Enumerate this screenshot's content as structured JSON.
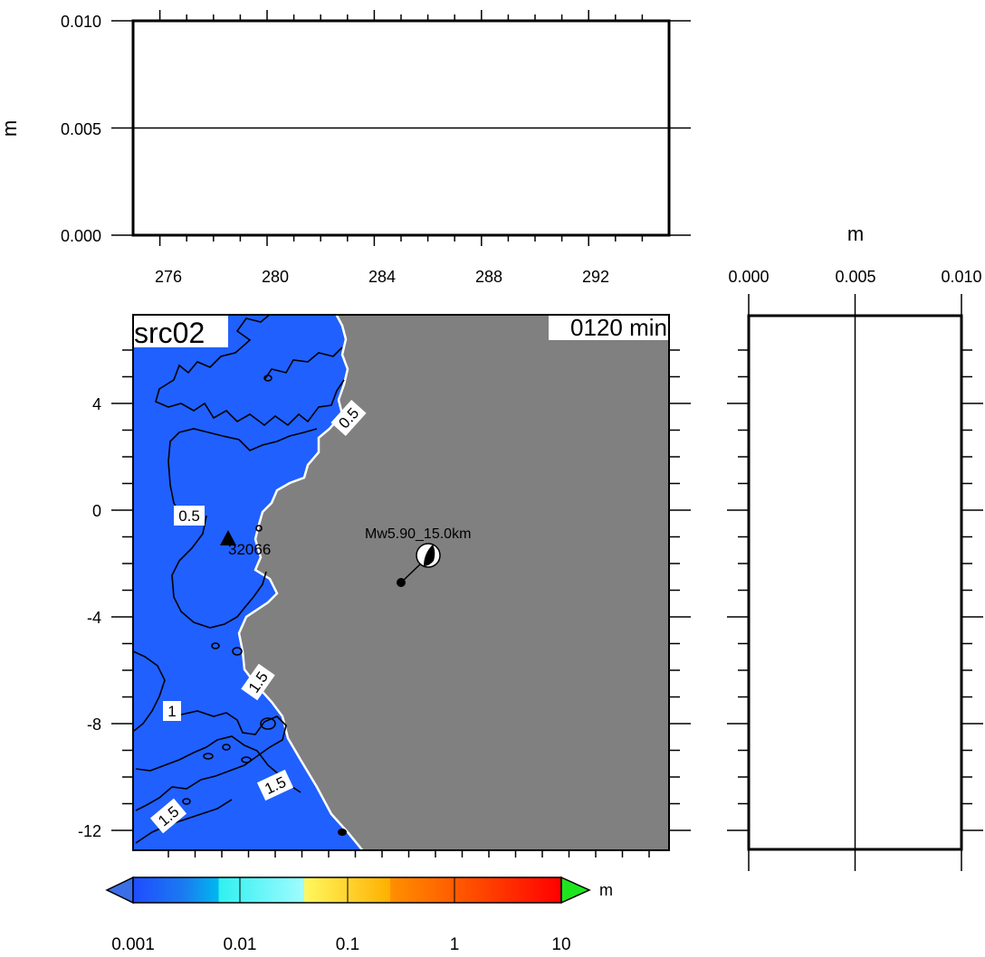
{
  "top_panel": {
    "ylabel": "m",
    "y_ticks": [
      "0.000",
      "0.005",
      "0.010"
    ],
    "x_ticks": [
      "276",
      "280",
      "284",
      "288",
      "292"
    ],
    "ylim": [
      0,
      0.01
    ],
    "xlim": [
      275,
      295
    ],
    "series": [
      {
        "x": [
          275,
          295
        ],
        "y": [
          0.005,
          0.005
        ]
      }
    ]
  },
  "map_panel": {
    "source_label": "src02",
    "time_label": "0120 min",
    "y_ticks": [
      "4",
      "0",
      "-4",
      "-8",
      "-12"
    ],
    "colors": {
      "sea": "#2060ff",
      "land": "#808080",
      "coast": "#ffffff",
      "contour": "#000000"
    },
    "station": {
      "label": "32066",
      "icon": "triangle-icon"
    },
    "epicenter": {
      "label": "Mw5.90_15.0km",
      "icon": "focal-mechanism-beachball-icon"
    },
    "contour_labels": [
      {
        "value": "0.5",
        "id": "a"
      },
      {
        "value": "0.5",
        "id": "b"
      },
      {
        "value": "1.5",
        "id": "c"
      },
      {
        "value": "1",
        "id": "d"
      },
      {
        "value": "1.5",
        "id": "e"
      },
      {
        "value": "1.5",
        "id": "f"
      }
    ]
  },
  "side_panel": {
    "xlabel": "m",
    "x_ticks": [
      "0.000",
      "0.005",
      "0.010"
    ],
    "xlim": [
      0,
      0.01
    ],
    "series": [
      {
        "x": [
          0.005,
          0.005
        ],
        "y": [
          0,
          1
        ]
      }
    ]
  },
  "colorbar": {
    "unit": "m",
    "ticks": [
      "0.001",
      "0.01",
      "0.1",
      "1",
      "10"
    ],
    "colors": {
      "below": "#3a6fe8",
      "above": "#1ee61e"
    }
  }
}
